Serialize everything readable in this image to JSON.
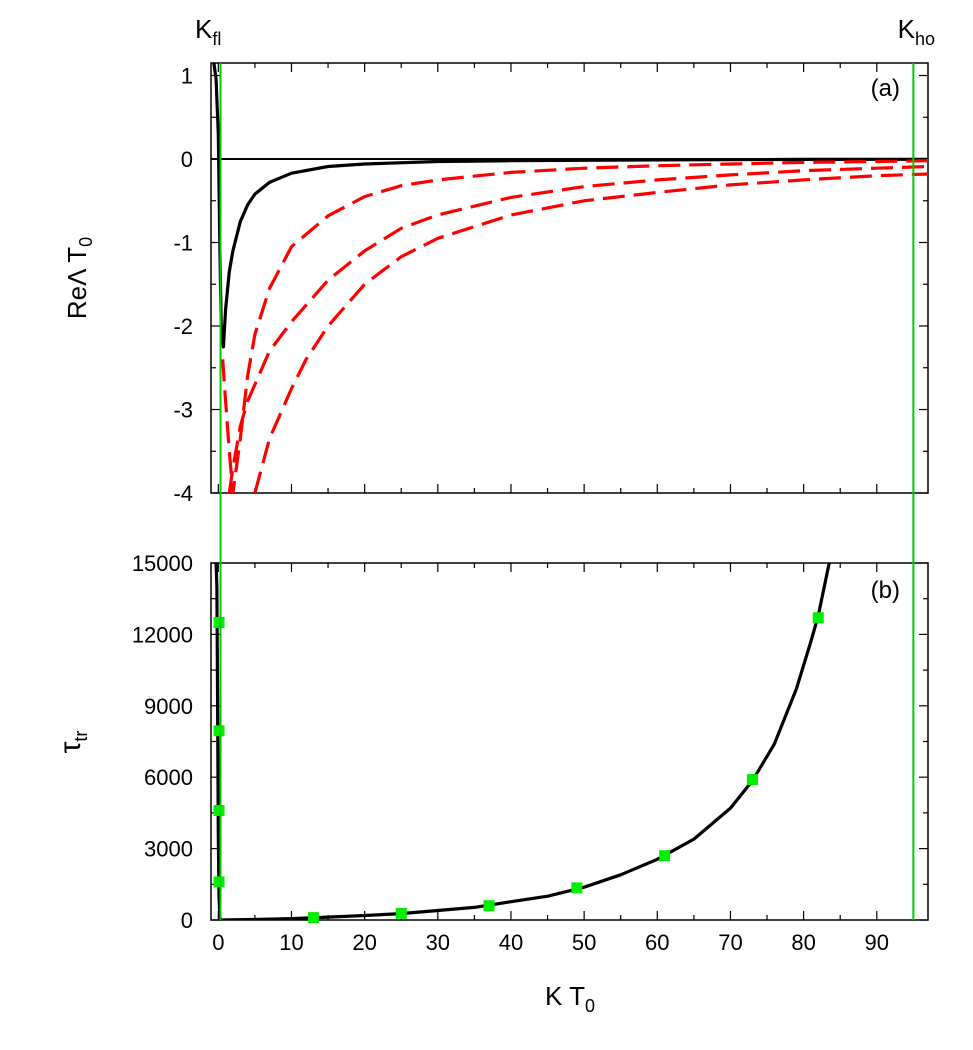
{
  "chart_data": [
    {
      "panel_label": "(a)",
      "type": "line",
      "ylabel": "ReΛ T",
      "ylabel_sub": "0",
      "xlim": [
        -1,
        97
      ],
      "ylim": [
        -4,
        1.15
      ],
      "yticks": [
        1,
        0,
        -1,
        -2,
        -3,
        -4
      ],
      "vertical_lines": [
        {
          "label": "K",
          "sub": "fl",
          "x": 0.3,
          "color": "#00cc00"
        },
        {
          "label": "K",
          "sub": "ho",
          "x": 95,
          "color": "#00cc00"
        }
      ],
      "zero_line": 0,
      "series": [
        {
          "style": "solid",
          "color": "#000000",
          "x": [
            -0.6,
            -0.3,
            0.0,
            0.2,
            0.4,
            0.7,
            1.0,
            1.5,
            2,
            3,
            4,
            5,
            7,
            10,
            15,
            20,
            30,
            40,
            60,
            80,
            97
          ],
          "y": [
            1.15,
            0.95,
            0.3,
            -1.0,
            -2.0,
            -2.25,
            -1.8,
            -1.35,
            -1.1,
            -0.75,
            -0.55,
            -0.42,
            -0.28,
            -0.17,
            -0.09,
            -0.06,
            -0.03,
            -0.02,
            -0.01,
            -0.005,
            -0.003
          ]
        },
        {
          "style": "dashed",
          "color": "#ff0000",
          "x": [
            0.6,
            1.0,
            1.5,
            2,
            3,
            4,
            5,
            7,
            10,
            15,
            20,
            25,
            30,
            40,
            50,
            60,
            70,
            80,
            90,
            97
          ],
          "y": [
            -2.4,
            -2.9,
            -3.5,
            -4.0,
            -3.35,
            -2.6,
            -2.1,
            -1.55,
            -1.05,
            -0.68,
            -0.45,
            -0.32,
            -0.25,
            -0.16,
            -0.11,
            -0.08,
            -0.06,
            -0.04,
            -0.03,
            -0.02
          ]
        },
        {
          "style": "dashed",
          "color": "#ff0000",
          "x": [
            1.5,
            2,
            3,
            4,
            5,
            7,
            10,
            15,
            20,
            25,
            30,
            40,
            50,
            60,
            70,
            80,
            90,
            97
          ],
          "y": [
            -4.0,
            -3.7,
            -3.2,
            -2.9,
            -2.7,
            -2.3,
            -1.95,
            -1.45,
            -1.1,
            -0.83,
            -0.67,
            -0.46,
            -0.33,
            -0.25,
            -0.19,
            -0.14,
            -0.11,
            -0.09
          ]
        },
        {
          "style": "dashed",
          "color": "#ff0000",
          "x": [
            5,
            7,
            10,
            12,
            15,
            20,
            25,
            30,
            40,
            50,
            60,
            70,
            80,
            90,
            97
          ],
          "y": [
            -4.0,
            -3.35,
            -2.75,
            -2.4,
            -2.0,
            -1.5,
            -1.17,
            -0.95,
            -0.67,
            -0.5,
            -0.4,
            -0.31,
            -0.25,
            -0.2,
            -0.18
          ]
        }
      ]
    },
    {
      "panel_label": "(b)",
      "type": "line",
      "xlabel": "K T",
      "xlabel_sub": "0",
      "ylabel": "τ",
      "ylabel_sub": "tr",
      "xlim": [
        -1,
        97
      ],
      "ylim": [
        0,
        15000
      ],
      "xticks": [
        0,
        10,
        20,
        30,
        40,
        50,
        60,
        70,
        80,
        90
      ],
      "yticks": [
        0,
        3000,
        6000,
        9000,
        12000,
        15000
      ],
      "series": [
        {
          "style": "solid",
          "color": "#000000",
          "x": [
            -0.3,
            -0.2,
            -0.1,
            0.0,
            0.1,
            0.2,
            0.3
          ],
          "y": [
            15000,
            14000,
            9000,
            3500,
            1000,
            200,
            0
          ]
        },
        {
          "style": "solid",
          "color": "#000000",
          "x": [
            0.3,
            5,
            10,
            15,
            20,
            25,
            30,
            35,
            40,
            45,
            50,
            55,
            60,
            65,
            70,
            73,
            76,
            79,
            81,
            82,
            83.5
          ],
          "y": [
            0,
            20,
            60,
            120,
            190,
            270,
            400,
            530,
            770,
            1000,
            1380,
            1900,
            2550,
            3400,
            4700,
            5850,
            7400,
            9700,
            11700,
            12800,
            15000
          ]
        },
        {
          "style": "markers",
          "color": "#00ee00",
          "x": [
            0.1,
            0.1,
            0.1,
            0.1,
            13,
            25,
            37,
            49,
            61,
            73,
            82
          ],
          "y": [
            1600,
            4600,
            7950,
            12500,
            100,
            280,
            600,
            1350,
            2700,
            5900,
            12700
          ]
        }
      ]
    }
  ]
}
